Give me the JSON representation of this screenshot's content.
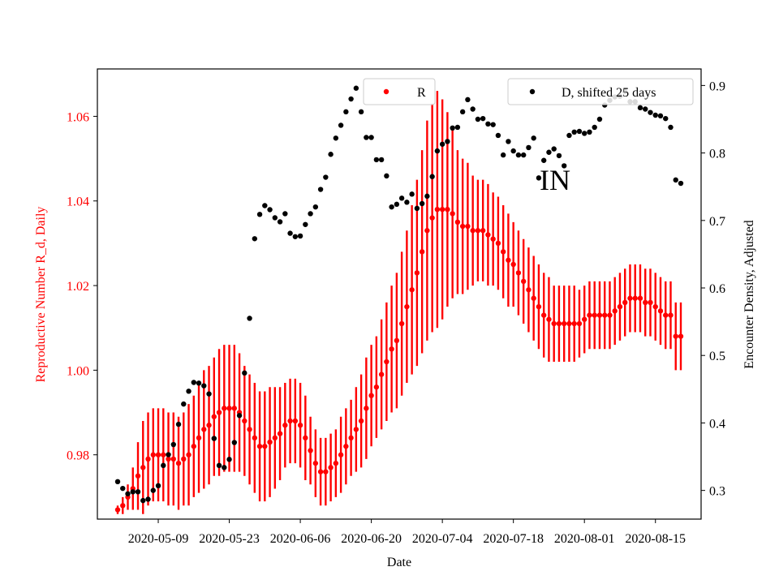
{
  "chart_data": {
    "type": "scatter",
    "annotation": "IN",
    "xlabel": "Date",
    "ylabel_left": "Reproductive Number R_d, Daily",
    "ylabel_right": "Encounter Density, Adjusted",
    "x_ticks": [
      "2020-05-09",
      "2020-05-23",
      "2020-06-06",
      "2020-06-20",
      "2020-07-04",
      "2020-07-18",
      "2020-08-01",
      "2020-08-15"
    ],
    "y_left_ticks": [
      "0.98",
      "1.00",
      "1.02",
      "1.04",
      "1.06"
    ],
    "y_right_ticks": [
      "0.3",
      "0.4",
      "0.5",
      "0.6",
      "0.7",
      "0.8",
      "0.9"
    ],
    "xlim": [
      "2020-04-27",
      "2020-08-24"
    ],
    "ylim_left": [
      0.9648,
      1.0712
    ],
    "ylim_right": [
      0.2575,
      0.9245
    ],
    "grid": false,
    "legend_left_position": "upper-center",
    "legend_right_position": "upper-right",
    "colors": {
      "r": "#ff0000",
      "d": "#000000",
      "left_axis": "#ff0000"
    },
    "x_start": "2020-05-01",
    "series": [
      {
        "name": "R",
        "axis": "left",
        "color": "#ff0000",
        "values": [
          0.967,
          0.968,
          0.97,
          0.972,
          0.975,
          0.977,
          0.979,
          0.98,
          0.98,
          0.98,
          0.979,
          0.979,
          0.978,
          0.979,
          0.98,
          0.982,
          0.984,
          0.986,
          0.987,
          0.989,
          0.99,
          0.991,
          0.991,
          0.991,
          0.99,
          0.988,
          0.986,
          0.984,
          0.982,
          0.982,
          0.983,
          0.984,
          0.985,
          0.987,
          0.988,
          0.988,
          0.987,
          0.984,
          0.981,
          0.978,
          0.976,
          0.976,
          0.977,
          0.978,
          0.98,
          0.982,
          0.984,
          0.986,
          0.988,
          0.991,
          0.994,
          0.996,
          0.999,
          1.002,
          1.005,
          1.007,
          1.011,
          1.015,
          1.019,
          1.023,
          1.028,
          1.033,
          1.036,
          1.038,
          1.038,
          1.038,
          1.037,
          1.035,
          1.034,
          1.034,
          1.033,
          1.033,
          1.033,
          1.032,
          1.031,
          1.03,
          1.028,
          1.026,
          1.025,
          1.023,
          1.021,
          1.019,
          1.017,
          1.015,
          1.013,
          1.012,
          1.011,
          1.011,
          1.011,
          1.011,
          1.011,
          1.011,
          1.012,
          1.013,
          1.013,
          1.013,
          1.013,
          1.013,
          1.014,
          1.015,
          1.016,
          1.017,
          1.017,
          1.017,
          1.016,
          1.016,
          1.015,
          1.014,
          1.013,
          1.013,
          1.008,
          1.008
        ],
        "ci_half": [
          0.001,
          0.002,
          0.003,
          0.005,
          0.008,
          0.011,
          0.011,
          0.011,
          0.011,
          0.011,
          0.011,
          0.011,
          0.011,
          0.011,
          0.012,
          0.012,
          0.013,
          0.014,
          0.014,
          0.014,
          0.015,
          0.015,
          0.015,
          0.015,
          0.014,
          0.013,
          0.013,
          0.013,
          0.013,
          0.013,
          0.013,
          0.012,
          0.011,
          0.01,
          0.01,
          0.01,
          0.01,
          0.01,
          0.008,
          0.008,
          0.008,
          0.008,
          0.008,
          0.008,
          0.009,
          0.009,
          0.009,
          0.01,
          0.011,
          0.012,
          0.012,
          0.012,
          0.013,
          0.014,
          0.015,
          0.016,
          0.017,
          0.018,
          0.02,
          0.022,
          0.024,
          0.026,
          0.027,
          0.028,
          0.026,
          0.023,
          0.02,
          0.017,
          0.016,
          0.015,
          0.013,
          0.012,
          0.012,
          0.012,
          0.011,
          0.011,
          0.011,
          0.011,
          0.01,
          0.01,
          0.01,
          0.01,
          0.01,
          0.01,
          0.01,
          0.01,
          0.009,
          0.009,
          0.009,
          0.009,
          0.009,
          0.008,
          0.008,
          0.008,
          0.008,
          0.008,
          0.008,
          0.008,
          0.008,
          0.008,
          0.008,
          0.008,
          0.008,
          0.008,
          0.008,
          0.008,
          0.008,
          0.008,
          0.008,
          0.008,
          0.008,
          0.008
        ]
      },
      {
        "name": "D, shifted 25 days",
        "axis": "right",
        "color": "#000000",
        "values": [
          0.313,
          0.303,
          0.295,
          0.298,
          0.298,
          0.285,
          0.287,
          0.3,
          0.307,
          0.337,
          0.353,
          0.368,
          0.398,
          0.428,
          0.447,
          0.46,
          0.459,
          0.455,
          0.443,
          0.377,
          0.337,
          0.334,
          0.346,
          0.371,
          0.411,
          0.474,
          0.555,
          0.673,
          0.709,
          0.722,
          0.716,
          0.704,
          0.698,
          0.71,
          0.681,
          0.676,
          0.677,
          0.694,
          0.71,
          0.72,
          0.746,
          0.764,
          0.798,
          0.822,
          0.841,
          0.861,
          0.88,
          0.896,
          0.861,
          0.823,
          0.823,
          0.79,
          0.79,
          0.766,
          0.72,
          0.724,
          0.733,
          0.727,
          0.739,
          0.718,
          0.725,
          0.736,
          0.765,
          0.803,
          0.813,
          0.817,
          0.837,
          0.838,
          0.861,
          0.879,
          0.865,
          0.85,
          0.851,
          0.843,
          0.842,
          0.826,
          0.797,
          0.817,
          0.803,
          0.797,
          0.797,
          0.808,
          0.822,
          0.763,
          0.789,
          0.801,
          0.806,
          0.796,
          0.781,
          0.826,
          0.831,
          0.832,
          0.829,
          0.831,
          0.838,
          0.85,
          0.871,
          0.878,
          0.883,
          0.884,
          0.891,
          0.876,
          0.876,
          0.867,
          0.865,
          0.86,
          0.856,
          0.855,
          0.851,
          0.838,
          0.76,
          0.755
        ]
      }
    ]
  }
}
